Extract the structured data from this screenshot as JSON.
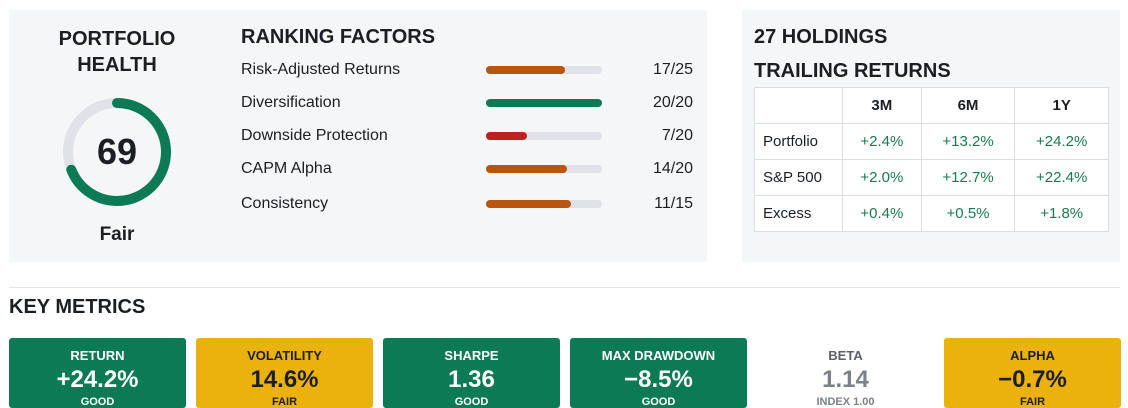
{
  "health": {
    "title_line1": "PORTFOLIO",
    "title_line2": "HEALTH",
    "score": "69",
    "score_value": 69,
    "score_max": 100,
    "label": "Fair",
    "gauge_color": "#0c7a55",
    "track_color": "#dfe3e8"
  },
  "ranking": {
    "title": "RANKING FACTORS",
    "factors": [
      {
        "name": "Risk-Adjusted Returns",
        "score": "17/25",
        "value": 17,
        "max": 25,
        "color": "#b8560f"
      },
      {
        "name": "Diversification",
        "score": "20/20",
        "value": 20,
        "max": 20,
        "color": "#0c7a55"
      },
      {
        "name": "Downside Protection",
        "score": "7/20",
        "value": 7,
        "max": 20,
        "color": "#c0201f"
      },
      {
        "name": "CAPM Alpha",
        "score": "14/20",
        "value": 14,
        "max": 20,
        "color": "#b8560f"
      },
      {
        "name": "Consistency",
        "score": "11/15",
        "value": 11,
        "max": 15,
        "color": "#b8560f"
      }
    ]
  },
  "returns": {
    "title_line1": "27 HOLDINGS",
    "title_line2": "TRAILING RETURNS",
    "columns": [
      "3M",
      "6M",
      "1Y"
    ],
    "rows": [
      {
        "label": "Portfolio",
        "values": [
          "+2.4%",
          "+13.2%",
          "+24.2%"
        ]
      },
      {
        "label": "S&P 500",
        "values": [
          "+2.0%",
          "+12.7%",
          "+22.4%"
        ]
      },
      {
        "label": "Excess",
        "values": [
          "+0.4%",
          "+0.5%",
          "+1.8%"
        ]
      }
    ],
    "positive_color": "#1a7a4c"
  },
  "key_metrics": {
    "title": "KEY METRICS",
    "items": [
      {
        "label": "RETURN",
        "value": "+24.2%",
        "sub": "GOOD",
        "style": "green"
      },
      {
        "label": "VOLATILITY",
        "value": "14.6%",
        "sub": "FAIR",
        "style": "yellow"
      },
      {
        "label": "SHARPE",
        "value": "1.36",
        "sub": "GOOD",
        "style": "green"
      },
      {
        "label": "MAX DRAWDOWN",
        "value": "−8.5%",
        "sub": "GOOD",
        "style": "green"
      },
      {
        "label": "BETA",
        "value": "1.14",
        "sub": "INDEX 1.00",
        "style": "plain"
      },
      {
        "label": "ALPHA",
        "value": "−0.7%",
        "sub": "FAIR",
        "style": "yellow"
      }
    ]
  }
}
